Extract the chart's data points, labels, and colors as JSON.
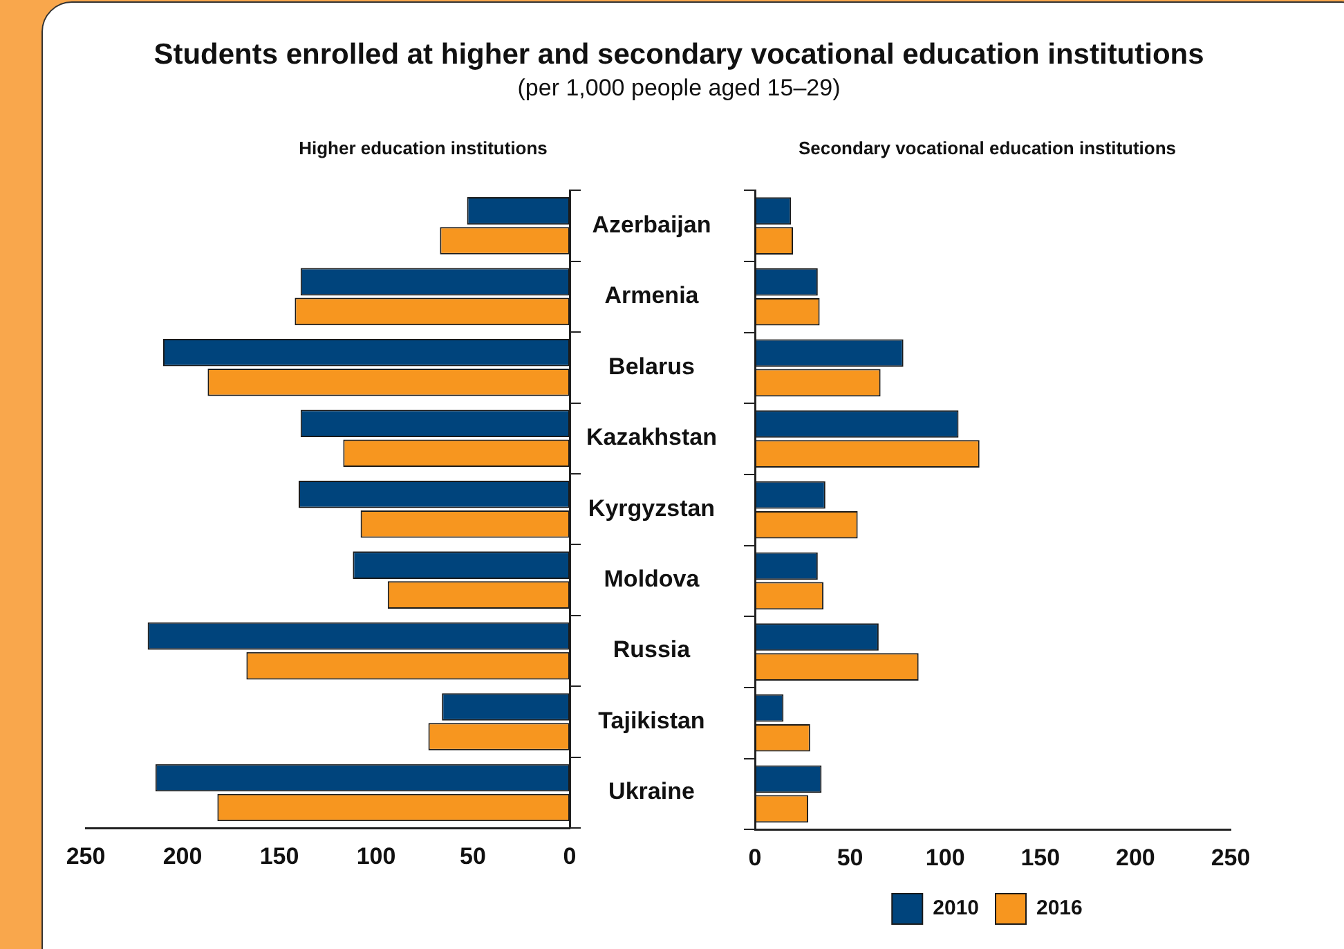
{
  "chart_data": [
    {
      "type": "bar",
      "orientation": "horizontal",
      "title": "Higher education institutions",
      "annotations": [
        "Students enrolled at higher and secondary vocational education institutions",
        "(per 1,000 people aged 15–29)"
      ],
      "categories": [
        "Azerbaijan",
        "Armenia",
        "Belarus",
        "Kazakhstan",
        "Kyrgyzstan",
        "Moldova",
        "Russia",
        "Tajikistan",
        "Ukraine"
      ],
      "series": [
        {
          "color": "#00447c",
          "values": [
            53,
            139,
            210,
            139,
            140,
            112,
            218,
            66,
            214
          ]
        },
        {
          "color": "#f7961f",
          "values": [
            67,
            142,
            187,
            117,
            108,
            94,
            167,
            73,
            182
          ]
        }
      ],
      "xlim": [
        250,
        0
      ],
      "xticks": [
        250,
        200,
        150,
        100,
        50,
        0
      ],
      "legend": false
    },
    {
      "type": "bar",
      "orientation": "horizontal",
      "title": "Secondary vocational education institutions",
      "categories": [
        null,
        null,
        null,
        null,
        null,
        null,
        null,
        null,
        null
      ],
      "series": [
        {
          "name": "2010",
          "color": "#00447c",
          "values": [
            19,
            33,
            78,
            107,
            37,
            33,
            65,
            15,
            35
          ]
        },
        {
          "name": "2016",
          "color": "#f7961f",
          "values": [
            20,
            34,
            66,
            118,
            54,
            36,
            86,
            29,
            28
          ]
        }
      ],
      "xlim": [
        0,
        250
      ],
      "xticks": [
        0,
        50,
        100,
        150,
        200,
        250
      ],
      "legend": "bottom",
      "tick_labels": "x"
    }
  ]
}
